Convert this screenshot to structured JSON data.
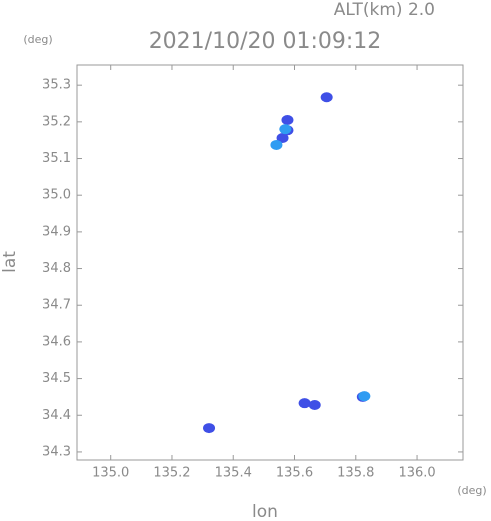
{
  "chart_data": {
    "type": "scatter",
    "altitude_label": "ALT(km) 2.0",
    "title": "2021/10/20 01:09:12",
    "y_unit": "(deg)",
    "x_unit": "(deg)",
    "ylabel": "lat",
    "xlabel": "lon",
    "xlim": [
      134.89,
      136.15
    ],
    "ylim": [
      34.278,
      35.355
    ],
    "xticks": [
      {
        "value": 135.0,
        "label": "135.0"
      },
      135.2,
      135.4,
      135.6,
      135.8,
      {
        "value": 136.0,
        "label": "136.0"
      }
    ],
    "yticks": [
      35.3,
      35.2,
      35.1,
      {
        "value": 35.0,
        "label": "35.0"
      },
      34.9,
      34.8,
      34.7,
      34.6,
      34.5,
      34.4,
      34.3
    ],
    "series": [
      {
        "color": "#3f4fe6",
        "x": [
          135.705,
          135.577,
          135.577,
          135.561,
          135.321,
          135.633,
          135.666,
          135.823
        ],
        "values": [
          35.267,
          35.205,
          35.177,
          35.156,
          34.365,
          34.433,
          34.428,
          34.45
        ]
      },
      {
        "color": "#2f9cf2",
        "x": [
          135.57,
          135.541,
          135.828
        ],
        "values": [
          35.18,
          35.137,
          34.452
        ]
      }
    ]
  }
}
